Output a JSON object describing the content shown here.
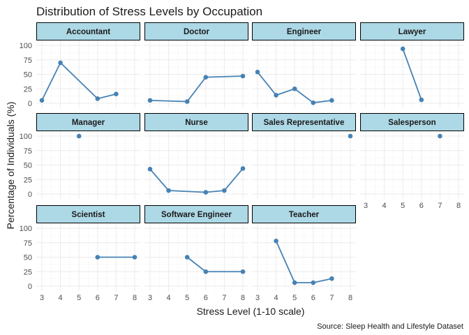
{
  "chart_data": {
    "type": "line",
    "title": "Distribution of Stress Levels by Occupation",
    "xlabel": "Stress Level (1-10 scale)",
    "ylabel": "Percentage of Individuals (%)",
    "caption": "Source: Sleep Health and Lifestyle Dataset",
    "xlim": [
      3,
      8
    ],
    "ylim": [
      0,
      100
    ],
    "x_ticks": [
      "3",
      "4",
      "5",
      "6",
      "7",
      "8"
    ],
    "y_ticks": [
      "0",
      "25",
      "50",
      "75",
      "100"
    ],
    "colors": {
      "line": "#4682B4",
      "strip_fill": "#ADD8E6",
      "strip_border": "#000000",
      "grid": "#ebebeb"
    },
    "series": [
      {
        "name": "Accountant",
        "x": [
          3,
          4,
          6,
          7
        ],
        "y": [
          5,
          70,
          8,
          16
        ]
      },
      {
        "name": "Doctor",
        "x": [
          3,
          5,
          6,
          8
        ],
        "y": [
          5,
          3,
          45,
          47
        ]
      },
      {
        "name": "Engineer",
        "x": [
          3,
          4,
          5,
          6,
          7
        ],
        "y": [
          54,
          14,
          25,
          1,
          5
        ]
      },
      {
        "name": "Lawyer",
        "x": [
          5,
          6
        ],
        "y": [
          94,
          6
        ]
      },
      {
        "name": "Manager",
        "x": [
          5
        ],
        "y": [
          100
        ]
      },
      {
        "name": "Nurse",
        "x": [
          3,
          4,
          6,
          7,
          8
        ],
        "y": [
          43,
          6,
          3,
          6,
          44
        ]
      },
      {
        "name": "Sales Representative",
        "x": [
          8
        ],
        "y": [
          100
        ]
      },
      {
        "name": "Salesperson",
        "x": [
          7
        ],
        "y": [
          100
        ]
      },
      {
        "name": "Scientist",
        "x": [
          6,
          8
        ],
        "y": [
          50,
          50
        ]
      },
      {
        "name": "Software Engineer",
        "x": [
          5,
          6,
          8
        ],
        "y": [
          50,
          25,
          25
        ]
      },
      {
        "name": "Teacher",
        "x": [
          4,
          5,
          6,
          7
        ],
        "y": [
          78,
          6,
          6,
          13
        ]
      }
    ]
  }
}
